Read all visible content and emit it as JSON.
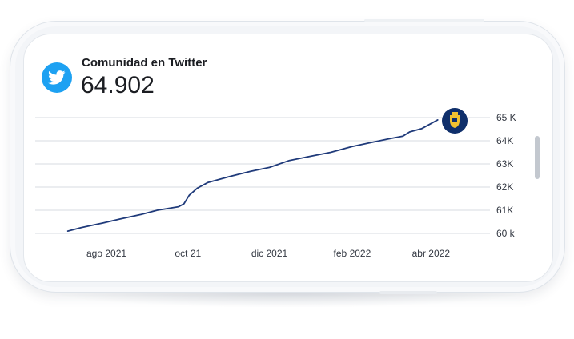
{
  "header": {
    "title": "Comunidad en Twitter",
    "count": "64.902",
    "icon": "twitter-bird-icon",
    "icon_color": "#1da1f2"
  },
  "badge": {
    "icon": "shield-crest-icon",
    "color": "#0f2f6b",
    "accent": "#f2c230"
  },
  "chart_data": {
    "type": "line",
    "line_color": "#1f3a7a",
    "grid": true,
    "x_labels": [
      "ago 2021",
      "oct 21",
      "dic 2021",
      "feb 2022",
      "abr 2022"
    ],
    "y_ticks": [
      {
        "value": 65000,
        "label": "65 K"
      },
      {
        "value": 64000,
        "label": "64K"
      },
      {
        "value": 63000,
        "label": "63K"
      },
      {
        "value": 62000,
        "label": "62K"
      },
      {
        "value": 61000,
        "label": "61K"
      },
      {
        "value": 60000,
        "label": "60 k"
      }
    ],
    "ylim": [
      60000,
      65000
    ],
    "x_domain": [
      "2021-07-16",
      "2022-04-22"
    ],
    "x_tick_dates": [
      "2021-08-15",
      "2021-10-15",
      "2021-12-15",
      "2022-02-15",
      "2022-04-15"
    ],
    "series": [
      {
        "points": [
          {
            "x": "2021-07-17",
            "y": 60100
          },
          {
            "x": "2021-07-27",
            "y": 60250
          },
          {
            "x": "2021-08-10",
            "y": 60420
          },
          {
            "x": "2021-08-25",
            "y": 60620
          },
          {
            "x": "2021-09-10",
            "y": 60820
          },
          {
            "x": "2021-09-22",
            "y": 61000
          },
          {
            "x": "2021-10-08",
            "y": 61150
          },
          {
            "x": "2021-10-12",
            "y": 61280
          },
          {
            "x": "2021-10-16",
            "y": 61650
          },
          {
            "x": "2021-10-22",
            "y": 61950
          },
          {
            "x": "2021-10-30",
            "y": 62200
          },
          {
            "x": "2021-11-15",
            "y": 62450
          },
          {
            "x": "2021-12-01",
            "y": 62680
          },
          {
            "x": "2021-12-15",
            "y": 62850
          },
          {
            "x": "2021-12-30",
            "y": 63150
          },
          {
            "x": "2022-01-15",
            "y": 63330
          },
          {
            "x": "2022-01-30",
            "y": 63500
          },
          {
            "x": "2022-02-15",
            "y": 63750
          },
          {
            "x": "2022-03-01",
            "y": 63920
          },
          {
            "x": "2022-03-14",
            "y": 64080
          },
          {
            "x": "2022-03-25",
            "y": 64200
          },
          {
            "x": "2022-03-30",
            "y": 64380
          },
          {
            "x": "2022-04-08",
            "y": 64520
          },
          {
            "x": "2022-04-20",
            "y": 64900
          }
        ]
      }
    ]
  }
}
